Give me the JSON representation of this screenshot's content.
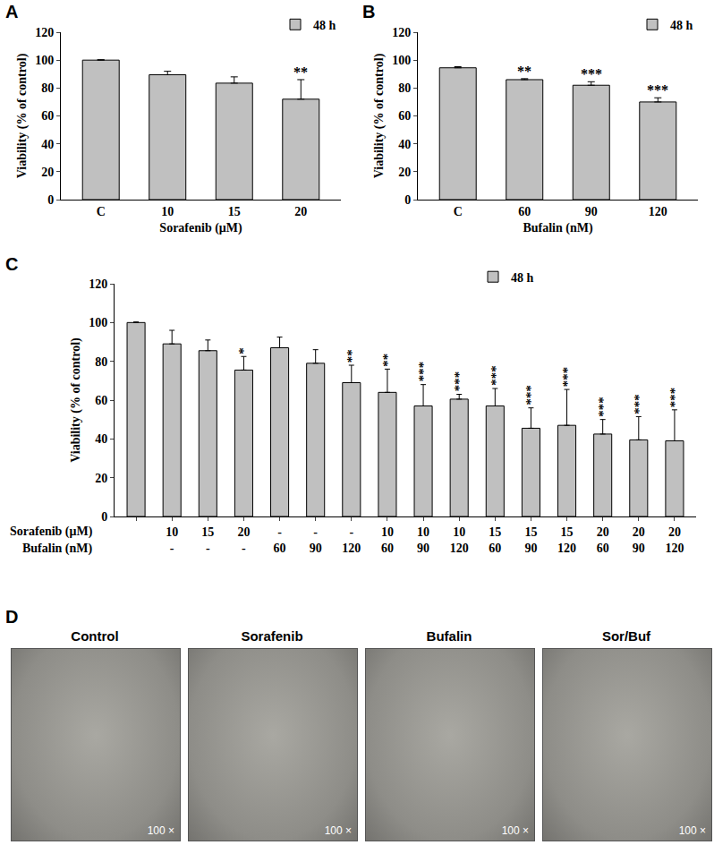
{
  "chart_data": [
    {
      "type": "bar",
      "label": "A",
      "categories": [
        "C",
        "10",
        "15",
        "20"
      ],
      "series": [
        {
          "name": "48 h",
          "color": "#c0c0c0",
          "values": [
            100,
            89.5,
            83.5,
            72
          ],
          "errors": [
            0.3,
            2.5,
            4.5,
            14
          ]
        }
      ],
      "significance": [
        null,
        null,
        null,
        "**"
      ],
      "x_label": "Sorafenib (μM)",
      "y_label": "Viability (% of control)",
      "ylim": [
        0,
        120
      ],
      "yticks": [
        0,
        20,
        40,
        60,
        80,
        100,
        120
      ],
      "legend": "top right"
    },
    {
      "type": "bar",
      "label": "B",
      "categories": [
        "C",
        "60",
        "90",
        "120"
      ],
      "series": [
        {
          "name": "48 h",
          "color": "#c0c0c0",
          "values": [
            94.5,
            86,
            82,
            70
          ],
          "errors": [
            0.8,
            0.7,
            2.5,
            3
          ]
        }
      ],
      "significance": [
        null,
        "**",
        "***",
        "***"
      ],
      "x_label": "Bufalin (nM)",
      "y_label": "Viability (% of control)",
      "ylim": [
        0,
        120
      ],
      "yticks": [
        0,
        20,
        40,
        60,
        80,
        100,
        120
      ],
      "legend": "top right"
    },
    {
      "type": "bar",
      "label": "C",
      "x_rows": [
        {
          "name": "Sorafenib (μM)",
          "labels": [
            null,
            "10",
            "15",
            "20",
            "-",
            "-",
            "-",
            "10",
            "10",
            "10",
            "15",
            "15",
            "15",
            "20",
            "20",
            "20"
          ]
        },
        {
          "name": "Bufalin (nM)",
          "labels": [
            null,
            "-",
            "-",
            "-",
            "60",
            "90",
            "120",
            "60",
            "90",
            "120",
            "60",
            "90",
            "120",
            "60",
            "90",
            "120"
          ]
        }
      ],
      "series": [
        {
          "name": "48 h",
          "color": "#c0c0c0",
          "values": [
            100,
            89,
            85.5,
            75.5,
            87,
            79,
            69,
            64,
            57,
            60.5,
            57,
            45.5,
            47,
            42.5,
            39.5,
            39
          ],
          "errors": [
            0.3,
            7,
            5.5,
            7,
            5.5,
            7,
            9,
            12,
            11,
            2.5,
            9,
            10.5,
            18.5,
            7.5,
            12,
            16
          ]
        }
      ],
      "significance": [
        null,
        null,
        null,
        "*",
        null,
        null,
        "**",
        "**",
        "***",
        "***",
        "***",
        "***",
        "***",
        "***",
        "***",
        "***"
      ],
      "y_label": "Viability (% of control)",
      "ylim": [
        0,
        120
      ],
      "yticks": [
        0,
        20,
        40,
        60,
        80,
        100,
        120
      ],
      "legend": "top"
    }
  ],
  "panel_d": {
    "label": "D",
    "images": [
      {
        "title": "Control",
        "magnification": "100 ×"
      },
      {
        "title": "Sorafenib",
        "magnification": "100 ×"
      },
      {
        "title": "Bufalin",
        "magnification": "100 ×"
      },
      {
        "title": "Sor/Buf",
        "magnification": "100 ×"
      }
    ]
  }
}
